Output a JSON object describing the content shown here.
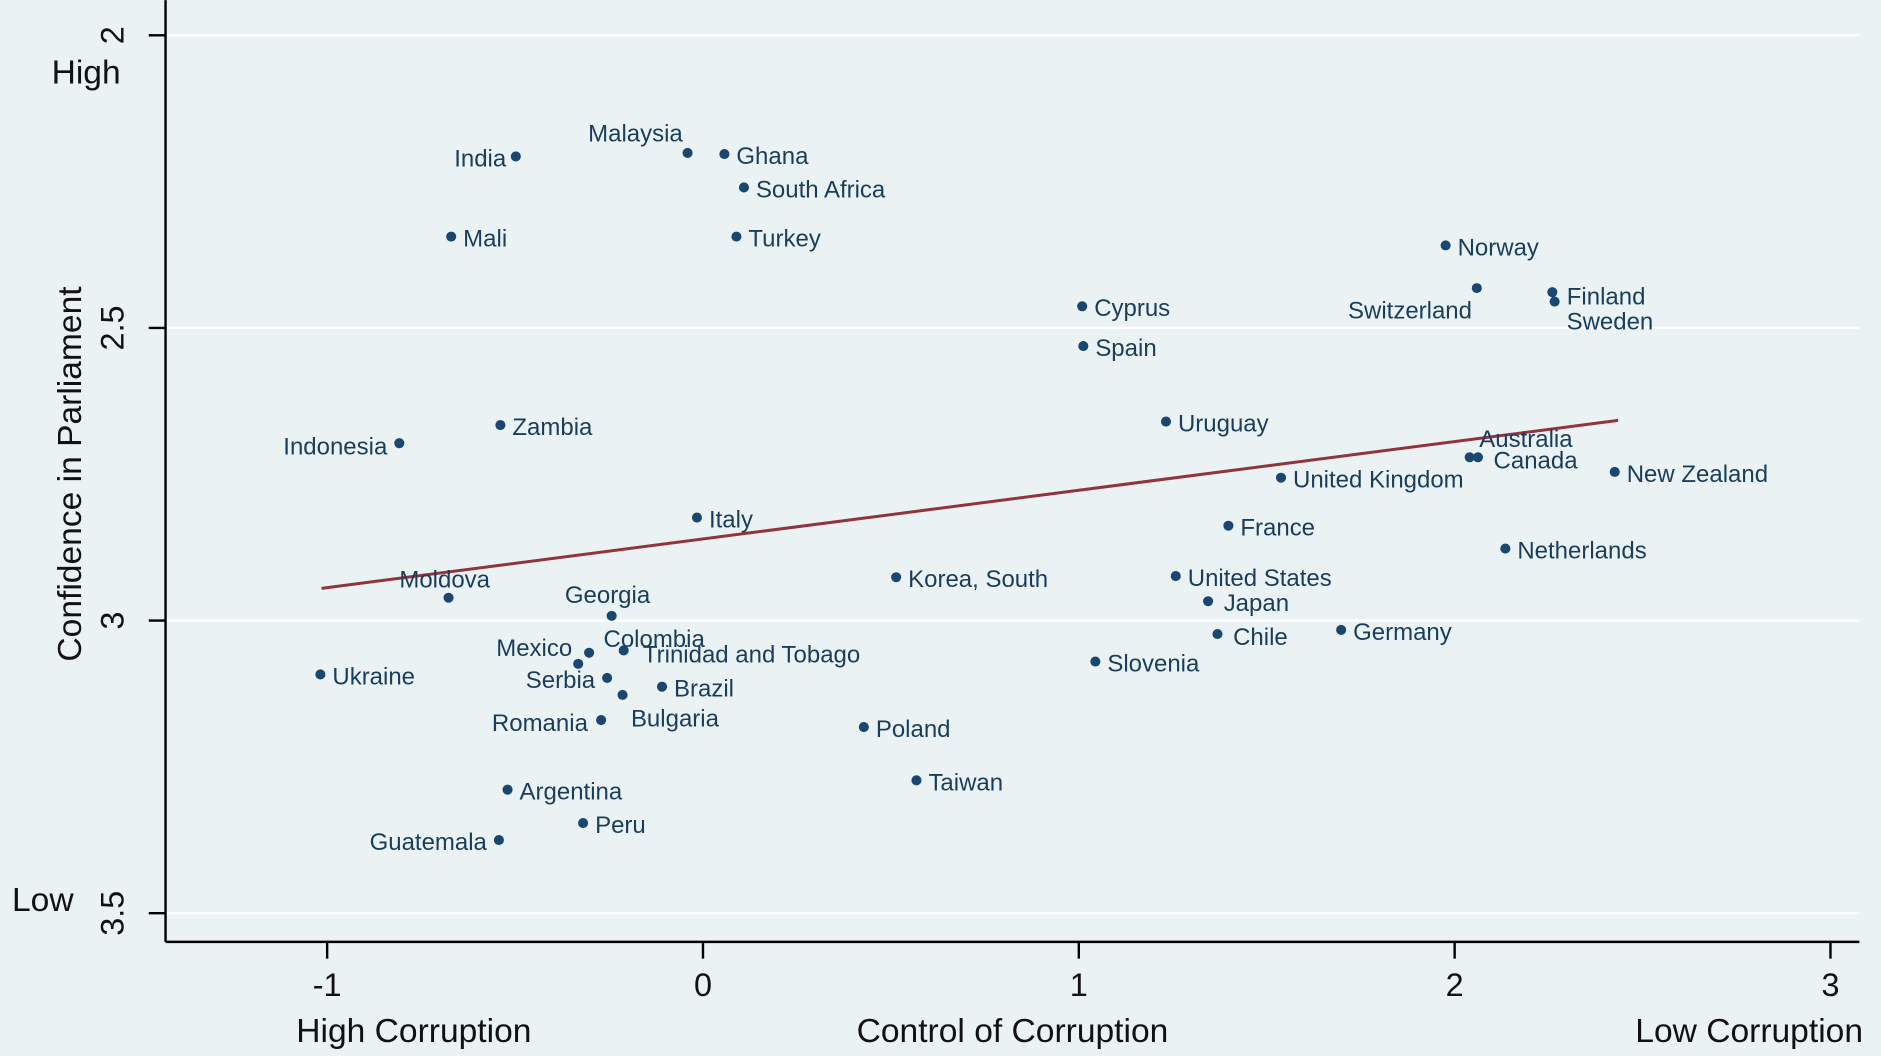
{
  "chart_data": {
    "type": "scatter",
    "x_axis_label": "Control of Corruption",
    "y_axis_label": "Confidence in Parliament",
    "annotations": {
      "y_high": "High",
      "y_low": "Low",
      "x_low": "High Corruption",
      "x_high": "Low Corruption"
    },
    "labels": [
      "India",
      "Malaysia",
      "Ghana",
      "South Africa",
      "Mali",
      "Turkey",
      "Norway",
      "Switzerland",
      "Finland",
      "Sweden",
      "Cyprus",
      "Spain",
      "Zambia",
      "Uruguay",
      "Indonesia",
      "Australia",
      "Canada",
      "New Zealand",
      "United Kingdom",
      "Italy",
      "France",
      "Netherlands",
      "Korea, South",
      "United States",
      "Moldova",
      "Japan",
      "Georgia",
      "Chile",
      "Germany",
      "Colombia",
      "Trinidad and Tobago",
      "Mexico",
      "Slovenia",
      "Ukraine",
      "Serbia",
      "Brazil",
      "Bulgaria",
      "Romania",
      "Poland",
      "Taiwan",
      "Argentina",
      "Peru",
      "Guatemala"
    ],
    "x": [
      -0.498,
      -0.041,
      0.057,
      0.109,
      -0.67,
      0.089,
      1.976,
      2.059,
      2.26,
      2.266,
      1.009,
      1.012,
      -0.539,
      1.232,
      -0.808,
      2.04,
      2.062,
      2.426,
      1.538,
      -0.016,
      1.398,
      2.135,
      0.514,
      1.258,
      -0.677,
      1.344,
      -0.243,
      1.369,
      1.698,
      -0.303,
      -0.211,
      -0.332,
      1.044,
      -1.018,
      -0.255,
      -0.109,
      -0.214,
      -0.271,
      0.428,
      0.568,
      -0.52,
      -0.319,
      -0.543
    ],
    "y": [
      2.207,
      2.201,
      2.203,
      2.26,
      2.344,
      2.344,
      2.359,
      2.432,
      2.439,
      2.455,
      2.463,
      2.531,
      2.666,
      2.66,
      2.697,
      2.721,
      2.721,
      2.746,
      2.756,
      2.824,
      2.838,
      2.877,
      2.926,
      2.924,
      2.961,
      2.967,
      2.992,
      3.023,
      3.016,
      3.055,
      3.051,
      3.074,
      3.07,
      3.092,
      3.098,
      3.113,
      3.127,
      3.17,
      3.182,
      3.273,
      3.289,
      3.346,
      3.375
    ],
    "color": "#1a476f",
    "fit_line": {
      "x": [
        -1.015,
        2.435
      ],
      "y": [
        2.945,
        2.658
      ],
      "color": "#90353b"
    },
    "xlim": [
      -1.43,
      3.077
    ],
    "ylim": [
      1.94,
      3.549
    ],
    "y_reversed": true,
    "xticks": [
      -1,
      0,
      1,
      2,
      3
    ],
    "yticks": [
      2,
      2.5,
      3,
      3.5
    ],
    "grid": true
  }
}
